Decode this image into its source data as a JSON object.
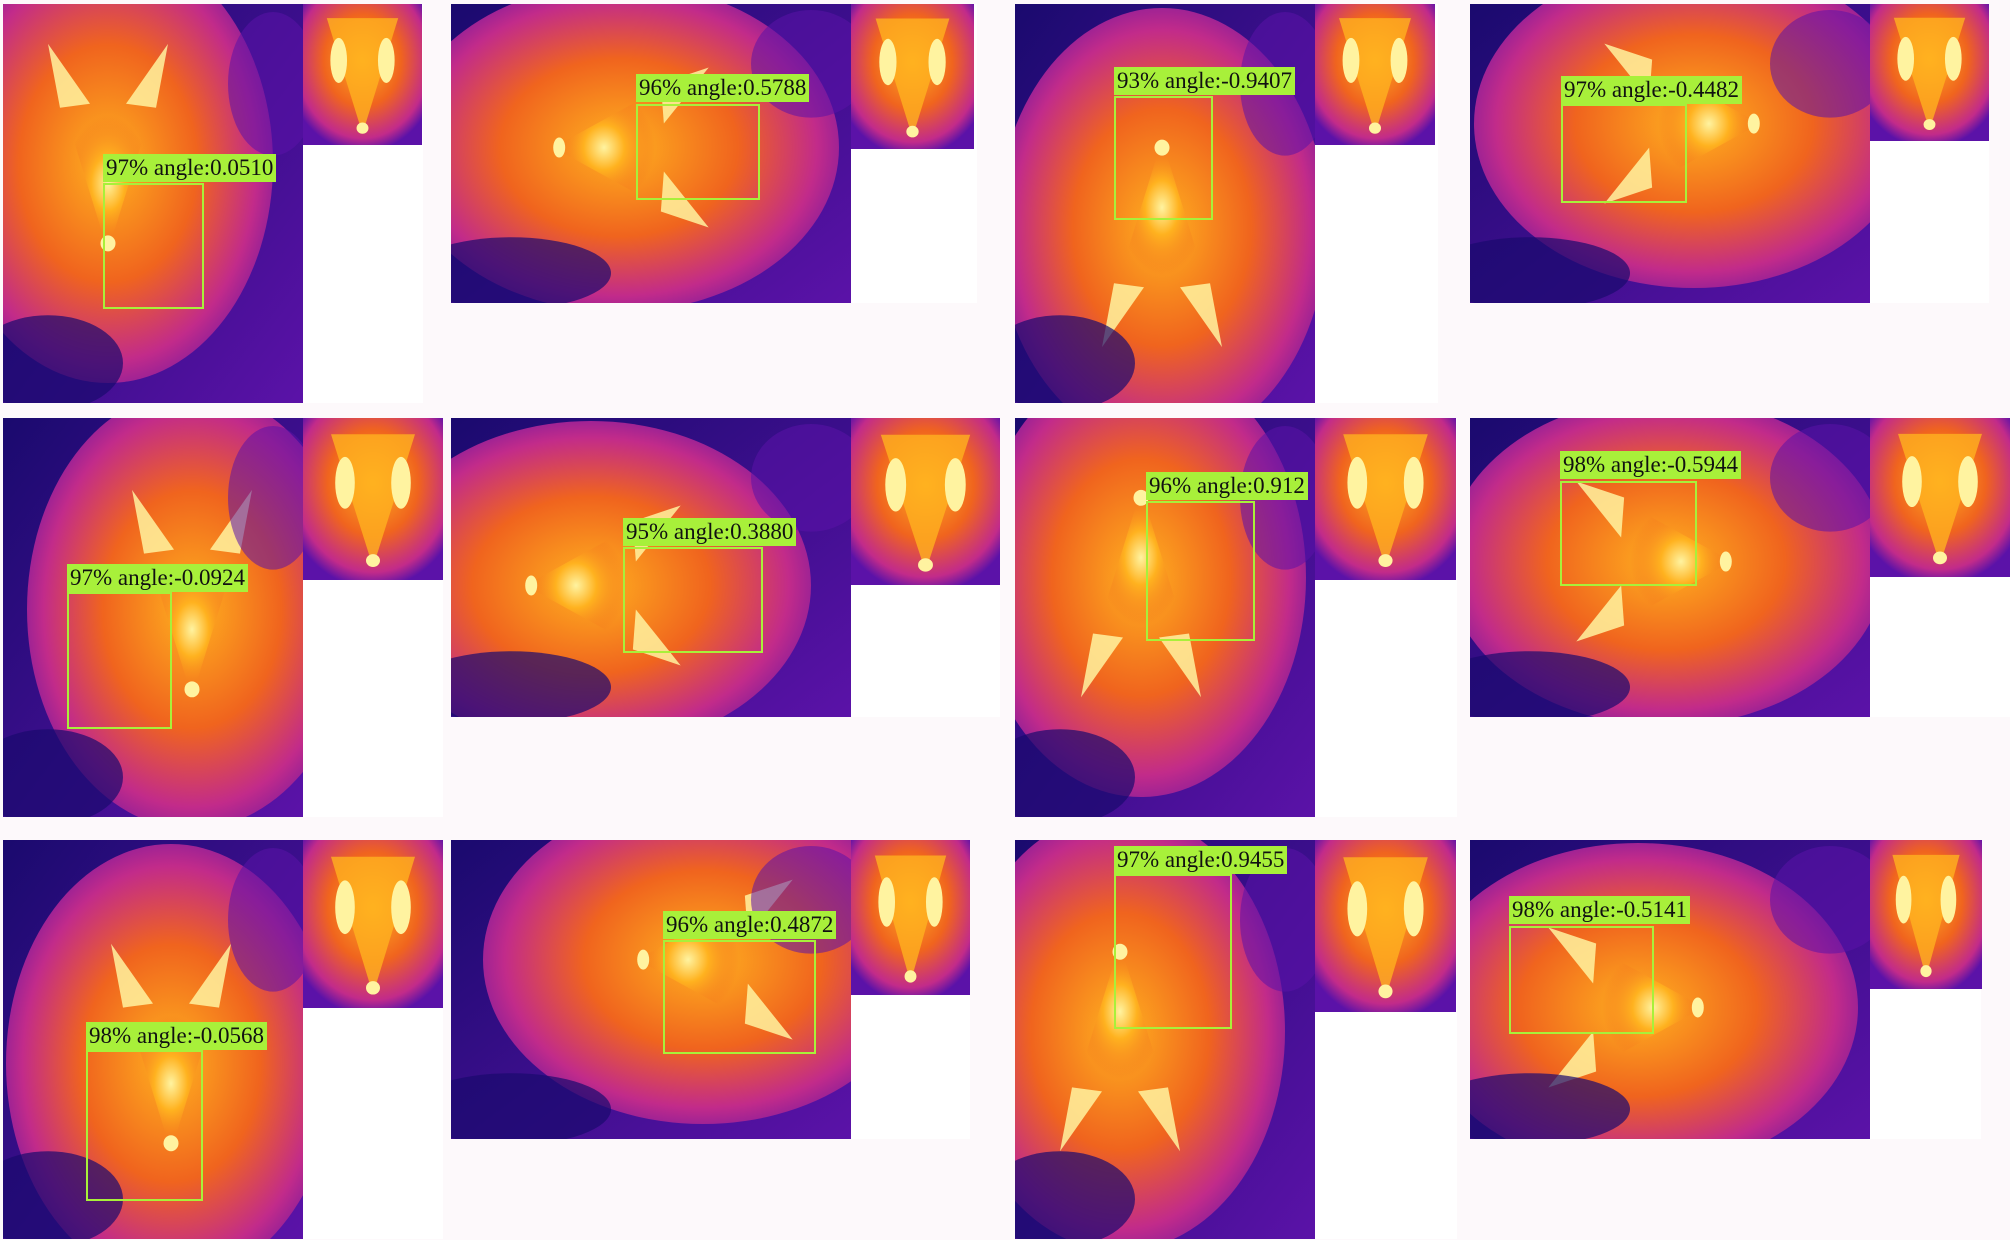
{
  "palette": {
    "cold": "#1a0a6e",
    "cool": "#5b12a8",
    "mid": "#c22b8a",
    "warm": "#f0641e",
    "hot": "#ffb21f",
    "hottest": "#fff3a0",
    "box": "#a8f03a"
  },
  "detections": [
    {
      "confidence": "97%",
      "label": "97% angle:0.0510"
    },
    {
      "confidence": "96%",
      "label": "96% angle:0.5788"
    },
    {
      "confidence": "93%",
      "label": "93% angle:-0.9407"
    },
    {
      "confidence": "97%",
      "label": "97% angle:-0.4482"
    },
    {
      "confidence": "97%",
      "label": "97% angle:-0.0924"
    },
    {
      "confidence": "95%",
      "label": "95% angle:0.3880"
    },
    {
      "confidence": "96%",
      "label": "96% angle:0.912"
    },
    {
      "confidence": "98%",
      "label": "98% angle:-0.5944"
    },
    {
      "confidence": "98%",
      "label": "98% angle:-0.0568"
    },
    {
      "confidence": "96%",
      "label": "96% angle:0.4872"
    },
    {
      "confidence": "97%",
      "label": "97% angle:0.9455"
    },
    {
      "confidence": "98%",
      "label": "98% angle:-0.5141"
    }
  ]
}
